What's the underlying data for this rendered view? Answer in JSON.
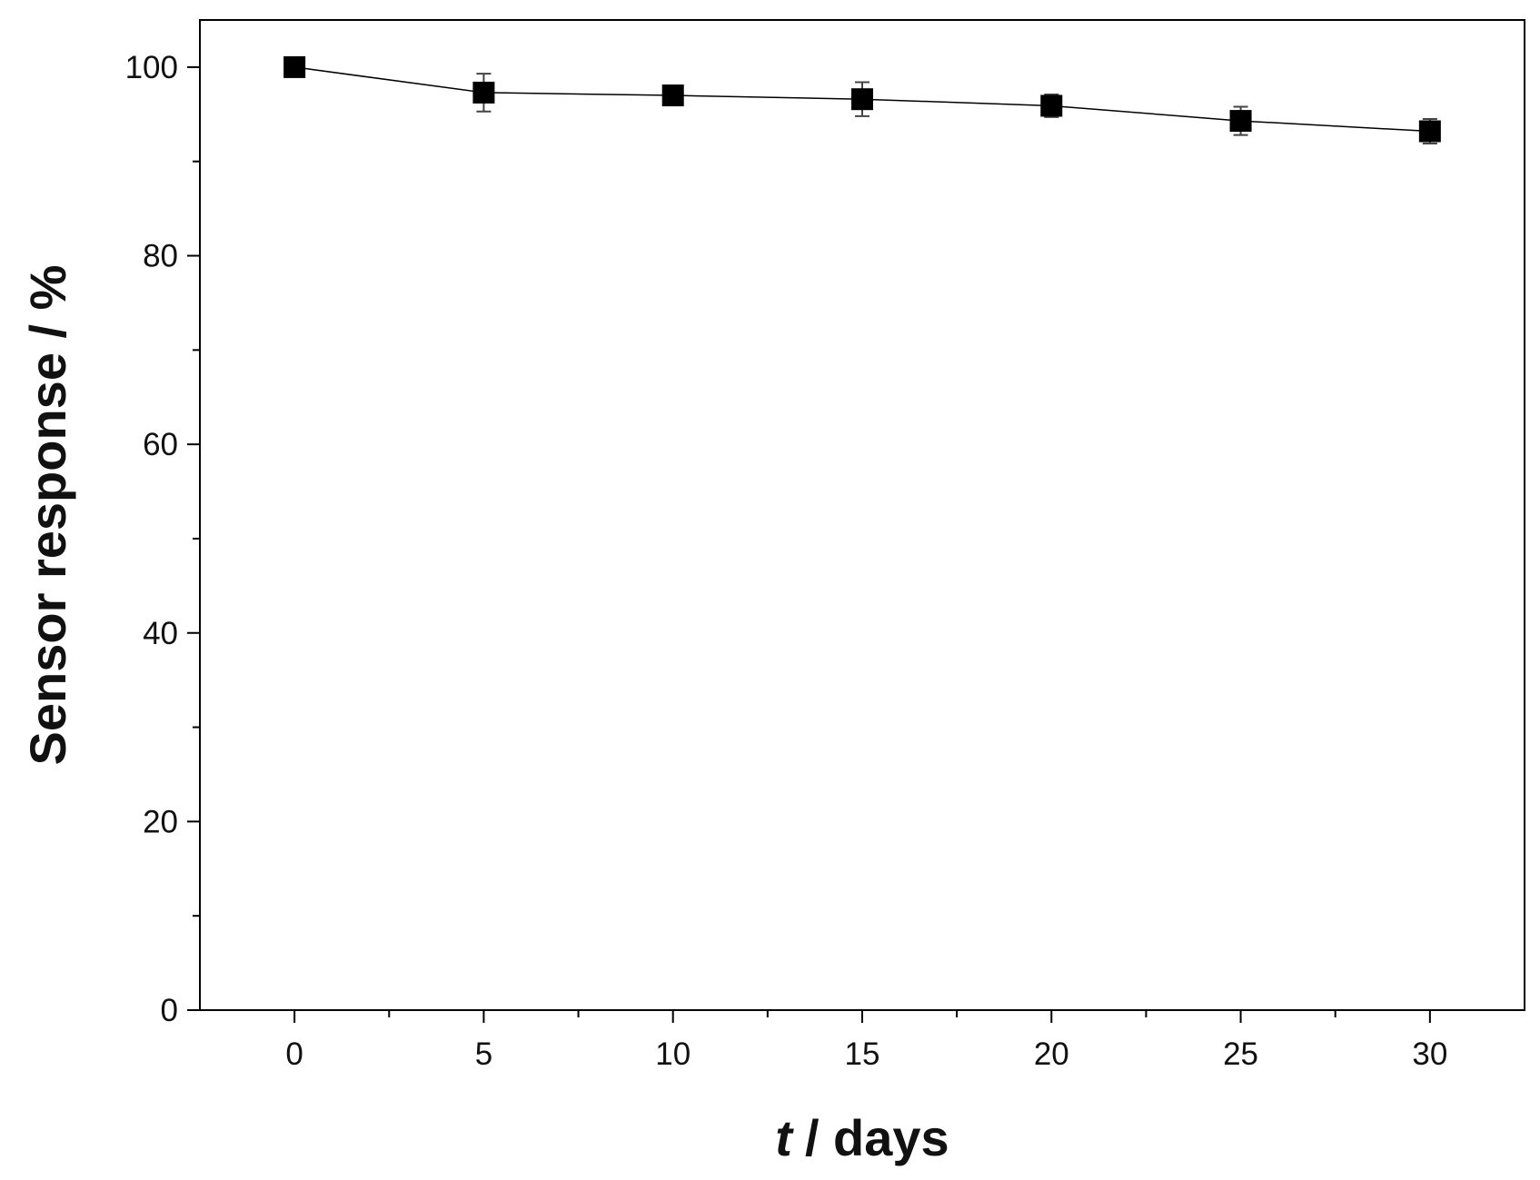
{
  "chart_data": {
    "type": "line",
    "x_label": [
      "t",
      "/ days"
    ],
    "y_label": "Sensor response / %",
    "x": [
      0,
      5,
      10,
      15,
      20,
      25,
      30
    ],
    "series": [
      {
        "color": "#000000",
        "values": [
          100,
          97.3,
          97.0,
          96.6,
          95.9,
          94.3,
          93.2
        ],
        "errors": [
          0.5,
          2.0,
          1.0,
          1.8,
          1.2,
          1.5,
          1.3
        ]
      }
    ],
    "xlim": [
      -2.5,
      32.5
    ],
    "ylim": [
      0,
      105
    ],
    "xticks": [
      0,
      5,
      10,
      15,
      20,
      25,
      30
    ],
    "yticks": [
      0,
      20,
      40,
      60,
      80,
      100
    ],
    "grid": false
  }
}
